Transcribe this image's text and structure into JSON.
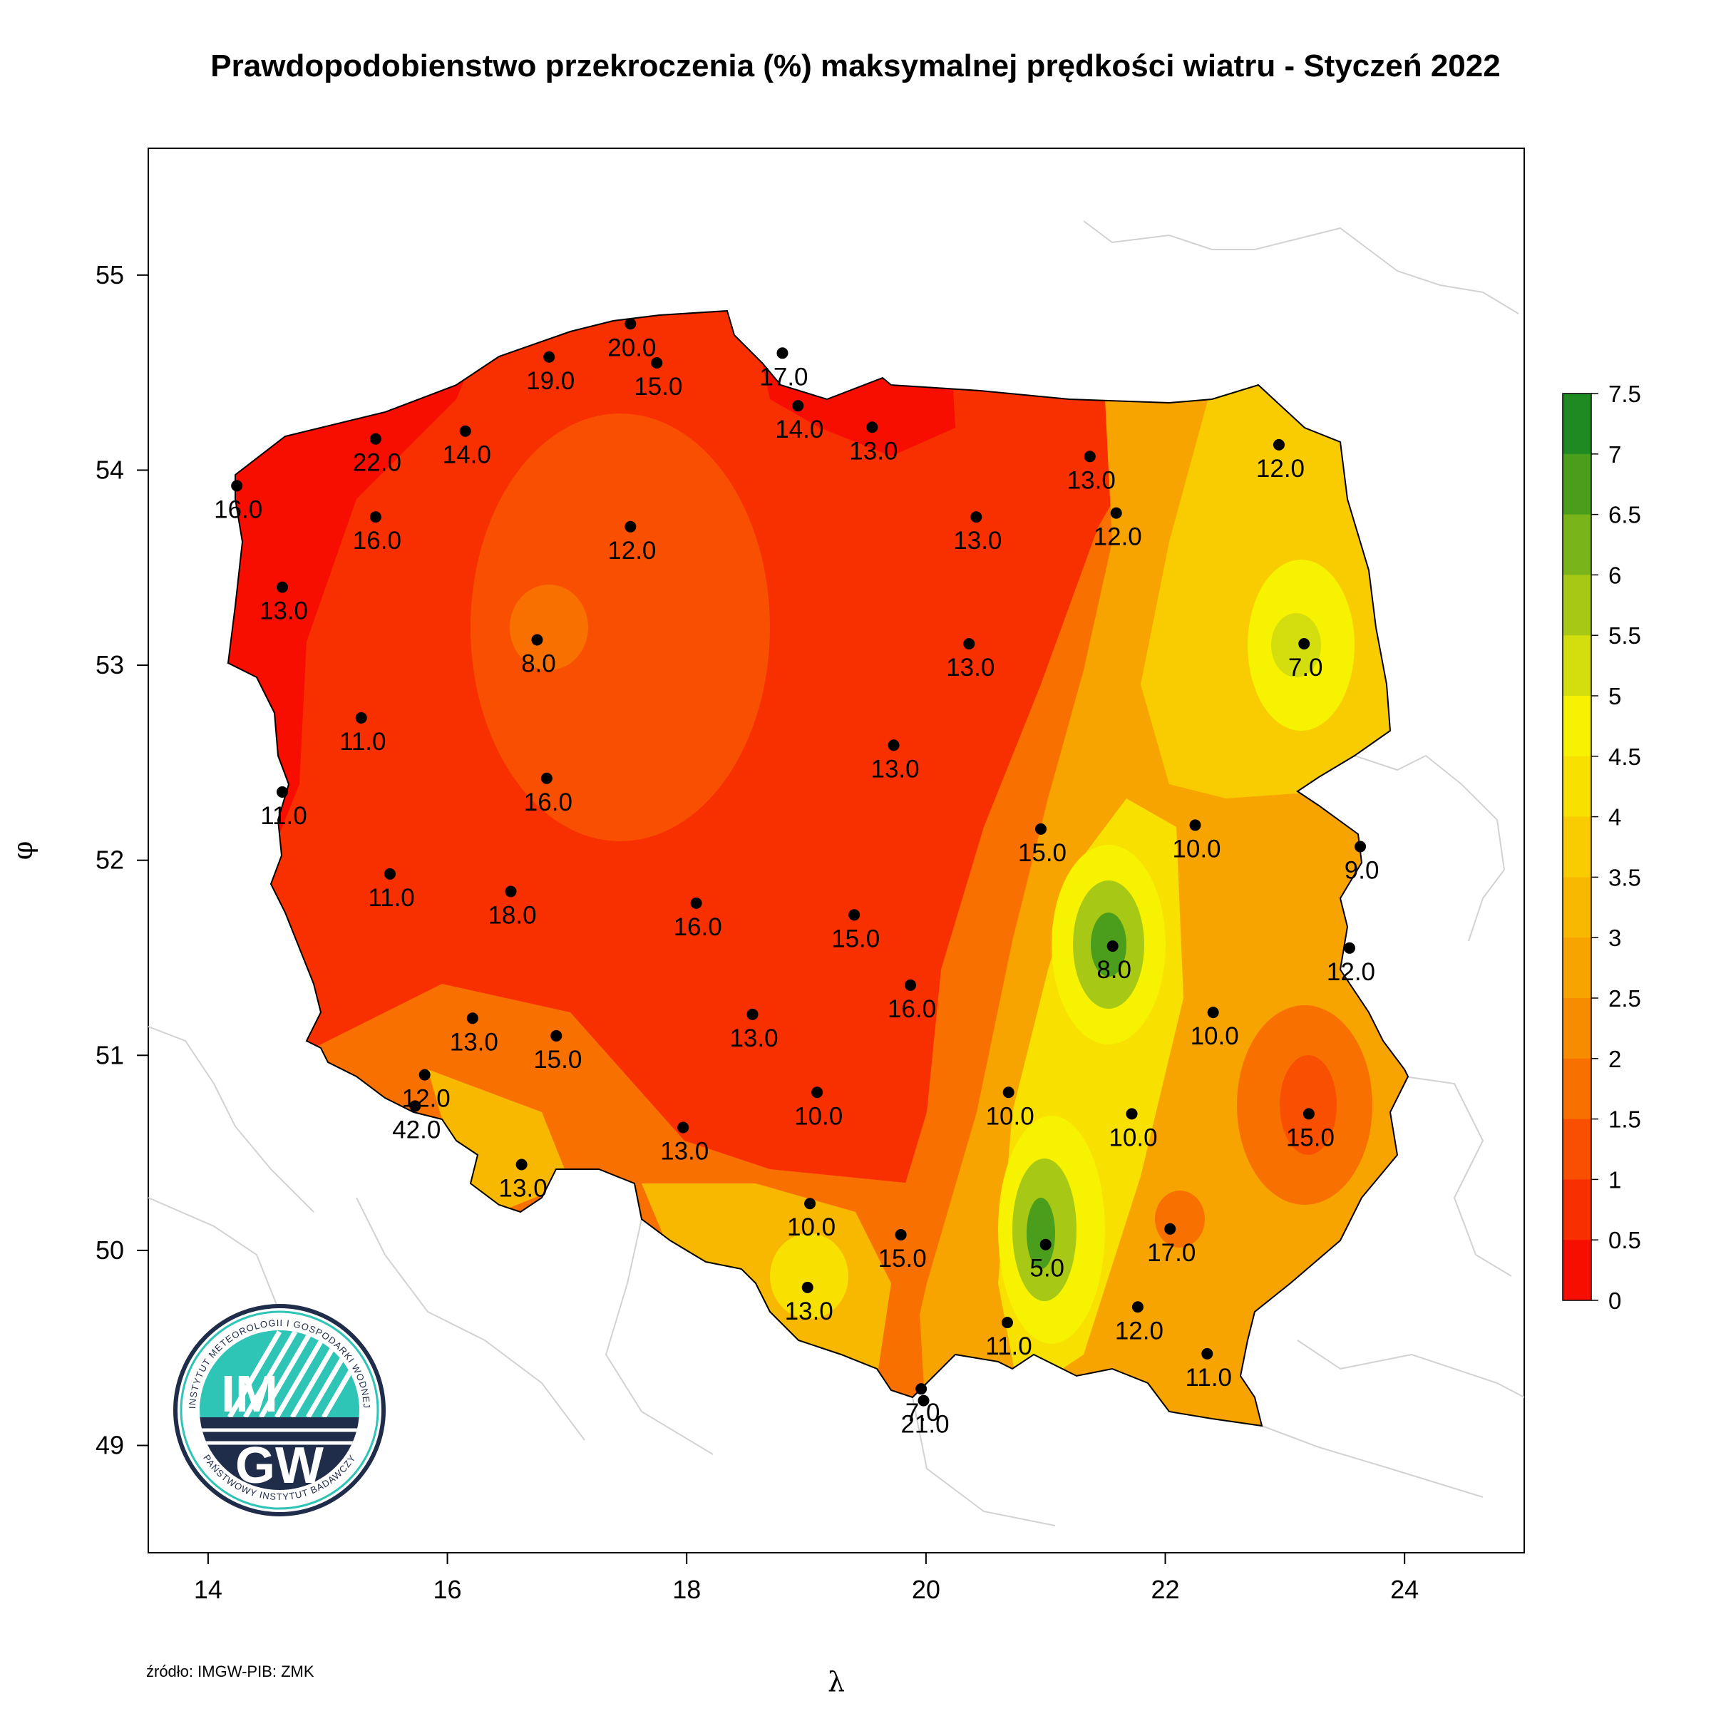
{
  "title": "Prawdopodobienstwo przekroczenia (%) maksymalnej prędkości wiatru - Styczeń 2022",
  "source": "źródło: IMGW-PIB: ZMK",
  "logo": {
    "text_top": "INSTYTUT METEOROLOGII I GOSPODARKI WODNEJ",
    "text_bottom": "PAŃSTWOWY INSTYTUT BADAWCZY",
    "letters_top": "IM",
    "letters_bottom": "GW",
    "colors": {
      "teal": "#2ec4b6",
      "navy": "#1f2d4a"
    }
  },
  "map": {
    "x_axis": {
      "label": "λ",
      "range": [
        13.5,
        25.0
      ],
      "ticks": [
        14,
        16,
        18,
        20,
        22,
        24
      ]
    },
    "y_axis": {
      "label": "φ",
      "range": [
        48.45,
        55.65
      ],
      "ticks": [
        49,
        50,
        51,
        52,
        53,
        54,
        55
      ]
    },
    "legend": {
      "placement": "right",
      "labels": [
        "7.5",
        "7",
        "6.5",
        "6",
        "5.5",
        "5",
        "4.5",
        "4",
        "3.5",
        "3",
        "2.5",
        "2",
        "1.5",
        "1",
        "0.5",
        "0"
      ],
      "colors": [
        "#1f8a22",
        "#4a9e1c",
        "#78b41a",
        "#a8c816",
        "#d4de0e",
        "#f6f200",
        "#f8e000",
        "#f8cc00",
        "#f8b800",
        "#f8a400",
        "#f88c00",
        "#f87000",
        "#f85000",
        "#f83000",
        "#f80e00"
      ]
    },
    "stations": [
      {
        "label": "16.0",
        "lon": 14.24,
        "lat": 53.92
      },
      {
        "label": "22.0",
        "lon": 15.4,
        "lat": 54.16
      },
      {
        "label": "14.0",
        "lon": 16.15,
        "lat": 54.2
      },
      {
        "label": "19.0",
        "lon": 16.85,
        "lat": 54.58
      },
      {
        "label": "20.0",
        "lon": 17.53,
        "lat": 54.75
      },
      {
        "label": "15.0",
        "lon": 17.75,
        "lat": 54.55
      },
      {
        "label": "17.0",
        "lon": 18.8,
        "lat": 54.6
      },
      {
        "label": "14.0",
        "lon": 18.93,
        "lat": 54.33
      },
      {
        "label": "13.0",
        "lon": 19.55,
        "lat": 54.22
      },
      {
        "label": "13.0",
        "lon": 21.37,
        "lat": 54.07
      },
      {
        "label": "12.0",
        "lon": 22.95,
        "lat": 54.13
      },
      {
        "label": "16.0",
        "lon": 15.4,
        "lat": 53.76
      },
      {
        "label": "12.0",
        "lon": 17.53,
        "lat": 53.71
      },
      {
        "label": "13.0",
        "lon": 20.42,
        "lat": 53.76
      },
      {
        "label": "12.0",
        "lon": 21.59,
        "lat": 53.78
      },
      {
        "label": "13.0",
        "lon": 14.62,
        "lat": 53.4
      },
      {
        "label": "8.0",
        "lon": 16.75,
        "lat": 53.13
      },
      {
        "label": "13.0",
        "lon": 20.36,
        "lat": 53.11
      },
      {
        "label": "7.0",
        "lon": 23.16,
        "lat": 53.11
      },
      {
        "label": "11.0",
        "lon": 15.28,
        "lat": 52.73
      },
      {
        "label": "13.0",
        "lon": 19.73,
        "lat": 52.59
      },
      {
        "label": "16.0",
        "lon": 16.83,
        "lat": 52.42
      },
      {
        "label": "11.0",
        "lon": 14.62,
        "lat": 52.35
      },
      {
        "label": "15.0",
        "lon": 20.96,
        "lat": 52.16
      },
      {
        "label": "10.0",
        "lon": 22.25,
        "lat": 52.18
      },
      {
        "label": "9.0",
        "lon": 23.63,
        "lat": 52.07
      },
      {
        "label": "11.0",
        "lon": 15.52,
        "lat": 51.93
      },
      {
        "label": "18.0",
        "lon": 16.53,
        "lat": 51.84
      },
      {
        "label": "16.0",
        "lon": 18.08,
        "lat": 51.78
      },
      {
        "label": "15.0",
        "lon": 19.4,
        "lat": 51.72
      },
      {
        "label": "8.0",
        "lon": 21.56,
        "lat": 51.56
      },
      {
        "label": "12.0",
        "lon": 23.54,
        "lat": 51.55
      },
      {
        "label": "16.0",
        "lon": 19.87,
        "lat": 51.36
      },
      {
        "label": "13.0",
        "lon": 16.21,
        "lat": 51.19
      },
      {
        "label": "13.0",
        "lon": 18.55,
        "lat": 51.21
      },
      {
        "label": "10.0",
        "lon": 22.4,
        "lat": 51.22
      },
      {
        "label": "15.0",
        "lon": 16.91,
        "lat": 51.1
      },
      {
        "label": "12.0",
        "lon": 15.81,
        "lat": 50.9
      },
      {
        "label": "42.0",
        "lon": 15.73,
        "lat": 50.74
      },
      {
        "label": "10.0",
        "lon": 19.09,
        "lat": 50.81
      },
      {
        "label": "10.0",
        "lon": 20.69,
        "lat": 50.81
      },
      {
        "label": "10.0",
        "lon": 21.72,
        "lat": 50.7
      },
      {
        "label": "15.0",
        "lon": 23.2,
        "lat": 50.7
      },
      {
        "label": "13.0",
        "lon": 17.97,
        "lat": 50.63
      },
      {
        "label": "13.0",
        "lon": 16.62,
        "lat": 50.44
      },
      {
        "label": "10.0",
        "lon": 19.03,
        "lat": 50.24
      },
      {
        "label": "15.0",
        "lon": 19.79,
        "lat": 50.08
      },
      {
        "label": "17.0",
        "lon": 22.04,
        "lat": 50.11
      },
      {
        "label": "5.0",
        "lon": 21.0,
        "lat": 50.03
      },
      {
        "label": "13.0",
        "lon": 19.01,
        "lat": 49.81
      },
      {
        "label": "12.0",
        "lon": 21.77,
        "lat": 49.71
      },
      {
        "label": "11.0",
        "lon": 20.68,
        "lat": 49.63
      },
      {
        "label": "11.0",
        "lon": 22.35,
        "lat": 49.47
      },
      {
        "label": "7.0",
        "lon": 19.96,
        "lat": 49.29
      },
      {
        "label": "21.0",
        "lon": 19.98,
        "lat": 49.23
      }
    ]
  }
}
